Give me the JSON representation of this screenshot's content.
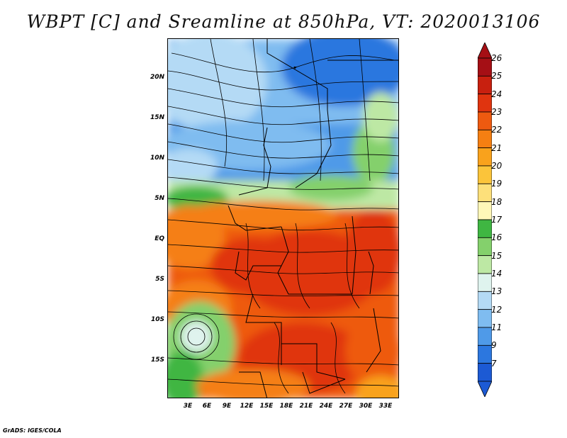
{
  "title": "WBPT [C] and Sreamline at 850hPa, VT: 2020013106",
  "credit": "GrADS: IGES/COLA",
  "map": {
    "lat_labels": [
      "20N",
      "15N",
      "10N",
      "5N",
      "EQ",
      "5S",
      "10S",
      "15S"
    ],
    "lon_labels": [
      "3E",
      "6E",
      "9E",
      "12E",
      "15E",
      "18E",
      "21E",
      "24E",
      "27E",
      "30E",
      "33E"
    ],
    "variable": "Wet-bulb potential temperature",
    "units": "C",
    "level": "850hPa",
    "valid_time": "2020013106"
  },
  "colorbar": {
    "labels": [
      "26",
      "25",
      "24",
      "23",
      "22",
      "21",
      "20",
      "19",
      "18",
      "17",
      "16",
      "15",
      "14",
      "13",
      "12",
      "11",
      "9",
      "7"
    ],
    "colors": [
      "#a50f15",
      "#c8200f",
      "#e0340f",
      "#ee5a10",
      "#f57f12",
      "#f9a21c",
      "#fbc43a",
      "#fde07a",
      "#fef7b8",
      "#3fb642",
      "#84d06c",
      "#bde8a4",
      "#dff3ee",
      "#b4daf5",
      "#7fbcf0",
      "#4f9ae8",
      "#2c77df",
      "#1c5ad4"
    ]
  }
}
